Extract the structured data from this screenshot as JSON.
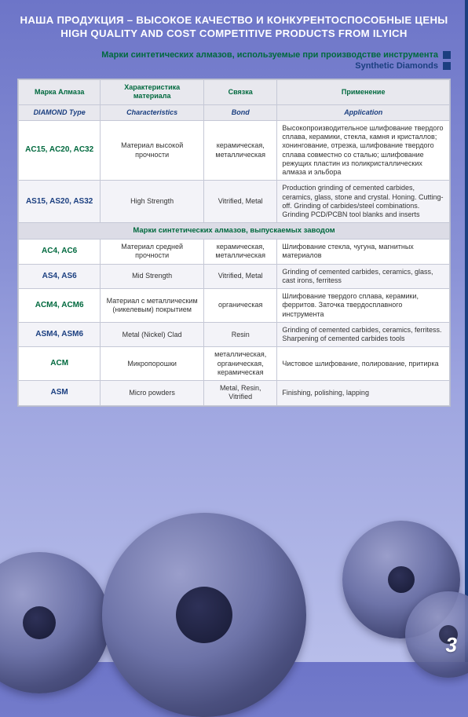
{
  "headline_ru": "НАША ПРОДУКЦИЯ – ВЫСОКОЕ КАЧЕСТВО И КОНКУРЕНТОСПОСОБНЫЕ ЦЕНЫ",
  "headline_en": "HIGH QUALITY AND COST COMPETITIVE PRODUCTS FROM ILYICH",
  "subhead_ru": "Марки синтетических алмазов, используемые при производстве инструмента",
  "subhead_en": "Synthetic Diamonds",
  "colors": {
    "green": "#00693e",
    "blue": "#1b3f80",
    "bg_top": "#6d75c8",
    "bg_bottom": "#b8beea",
    "row_alt": "#f3f3f8",
    "border": "#c5c8d6"
  },
  "table": {
    "col_widths_pct": [
      19,
      24,
      17,
      40
    ],
    "headers_ru": [
      "Марка Алмаза",
      "Характеристика материала",
      "Связка",
      "Применение"
    ],
    "headers_en": [
      "DIAMOND Type",
      "Characteristics",
      "Bond",
      "Application"
    ],
    "rows_top": [
      {
        "type_ru": "AC15, AC20, AC32",
        "char_ru": "Материал высокой прочности",
        "bond_ru": "керамическая, металлическая",
        "app_ru": "Высокопроизводительное шлифование твердого сплава, керамики, стекла, камня и кристаллов; хонингование, отрезка, шлифование твердого сплава совместно со сталью; шлифование режущих пластин из поликристаллических алмаза и эльбора",
        "type_en": "AS15, AS20, AS32",
        "char_en": "High Strength",
        "bond_en": "Vitrified, Metal",
        "app_en": "Production grinding of cemented carbides, ceramics, glass, stone and crystal. Honing. Cutting-off. Grinding of carbides/steel combinations. Grinding PCD/PCBN tool blanks and inserts"
      }
    ],
    "section_band": "Марки синтетических алмазов, выпускаемых заводом",
    "rows_bottom": [
      {
        "type_ru": "AC4, AC6",
        "char_ru": "Материал средней прочности",
        "bond_ru": "керамическая, металлическая",
        "app_ru": "Шлифование стекла, чугуна, магнитных материалов",
        "type_en": "AS4, AS6",
        "char_en": "Mid Strength",
        "bond_en": "Vitrified, Metal",
        "app_en": "Grinding of cemented carbides, ceramics, glass, cast irons, ferritess"
      },
      {
        "type_ru": "ACM4, ACM6",
        "char_ru": "Материал с металлическим (никелевым) покрытием",
        "bond_ru": "органическая",
        "app_ru": "Шлифование твердого сплава, керамики, ферритов. Заточка твердосплавного инструмента",
        "type_en": "ASM4, ASM6",
        "char_en": "Metal (Nickel) Clad",
        "bond_en": "Resin",
        "app_en": "Grinding of cemented carbides, ceramics, ferritess. Sharpening of cemented carbides tools"
      },
      {
        "type_ru": "ACM",
        "char_ru": "Микропорошки",
        "bond_ru": "металлическая, органическая, керамическая",
        "app_ru": "Чистовое шлифование, полирование, притирка",
        "type_en": "ASM",
        "char_en": "Micro powders",
        "bond_en": "Metal, Resin, Vitrified",
        "app_en": "Finishing, polishing, lapping"
      }
    ]
  },
  "page_number": "3"
}
